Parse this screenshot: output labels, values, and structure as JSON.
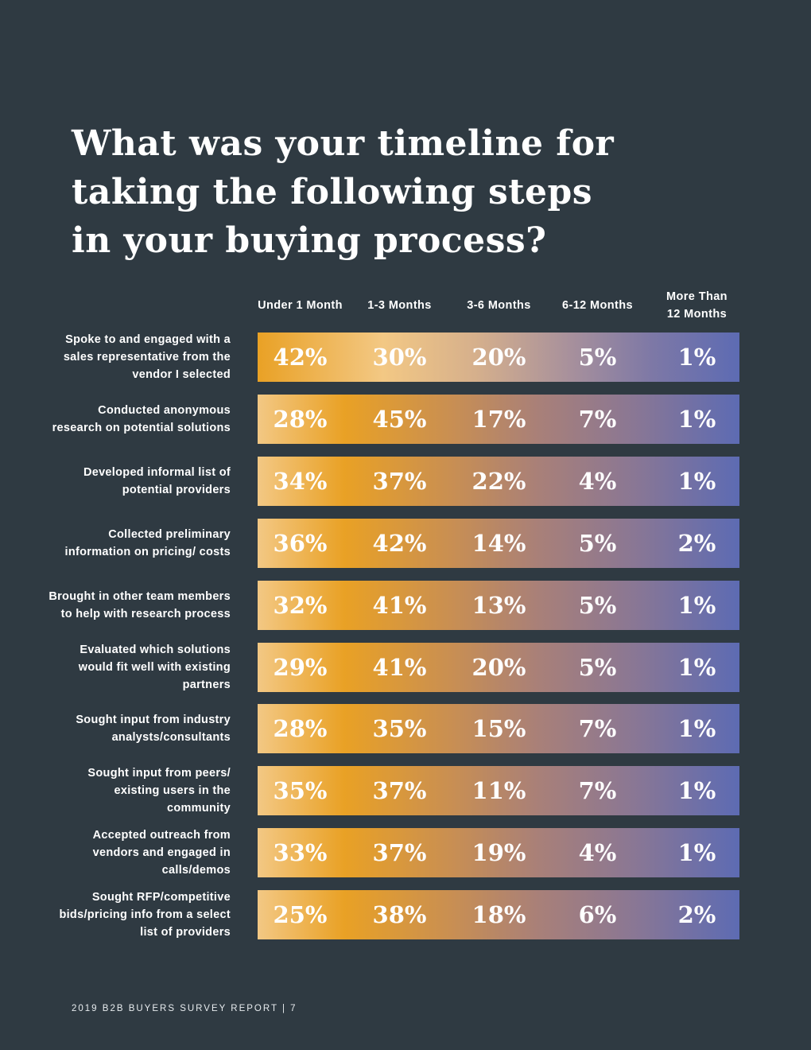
{
  "title_lines": [
    "What was your timeline for",
    "taking the following steps",
    "in your buying process?"
  ],
  "footer": "2019 B2B BUYERS SURVEY REPORT | 7",
  "colors": {
    "background": "#2f3a42",
    "orange": "#e9a125",
    "peach": "#f3c884",
    "purple": "#5d6bb3"
  },
  "chart_data": {
    "type": "table",
    "title": "What was your timeline for taking the following steps in your buying process?",
    "columns": [
      "Under 1 Month",
      "1-3 Months",
      "3-6 Months",
      "6-12 Months",
      "More Than 12 Months"
    ],
    "column_display": [
      [
        "Under 1 Month"
      ],
      [
        "1-3 Months"
      ],
      [
        "3-6 Months"
      ],
      [
        "6-12 Months"
      ],
      [
        "More Than",
        "12 Months"
      ]
    ],
    "rows": [
      {
        "label": "Spoke to and engaged with a sales representative from the vendor I selected",
        "values": [
          "42%",
          "30%",
          "20%",
          "5%",
          "1%"
        ]
      },
      {
        "label": "Conducted anonymous research on potential solutions",
        "values": [
          "28%",
          "45%",
          "17%",
          "7%",
          "1%"
        ]
      },
      {
        "label": "Developed informal list of potential providers",
        "values": [
          "34%",
          "37%",
          "22%",
          "4%",
          "1%"
        ]
      },
      {
        "label": "Collected preliminary information on pricing/ costs",
        "values": [
          "36%",
          "42%",
          "14%",
          "5%",
          "2%"
        ]
      },
      {
        "label": "Brought in other team members to help with research process",
        "values": [
          "32%",
          "41%",
          "13%",
          "5%",
          "1%"
        ]
      },
      {
        "label": "Evaluated which solutions would fit well with existing partners",
        "values": [
          "29%",
          "41%",
          "20%",
          "5%",
          "1%"
        ]
      },
      {
        "label": "Sought input from industry analysts/consultants",
        "values": [
          "28%",
          "35%",
          "15%",
          "7%",
          "1%"
        ]
      },
      {
        "label": "Sought input from peers/ existing users in the community",
        "values": [
          "35%",
          "37%",
          "11%",
          "7%",
          "1%"
        ]
      },
      {
        "label": "Accepted outreach from vendors and engaged in calls/demos",
        "values": [
          "33%",
          "37%",
          "19%",
          "4%",
          "1%"
        ]
      },
      {
        "label": "Sought RFP/competitive bids/pricing info from a select list of providers",
        "values": [
          "25%",
          "38%",
          "18%",
          "6%",
          "2%"
        ]
      }
    ]
  }
}
